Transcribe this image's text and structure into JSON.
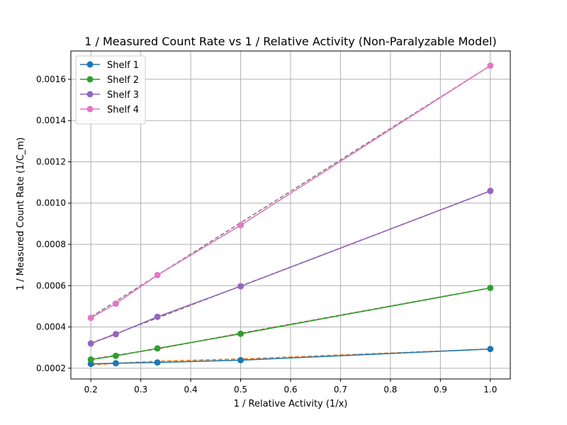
{
  "chart_data": {
    "type": "line",
    "title": "1 / Measured Count Rate vs 1 / Relative Activity (Non-Paralyzable Model)",
    "xlabel": "1 / Relative Activity (1/x)",
    "ylabel": "1 / Measured Count Rate (1/C_m)",
    "xlim": [
      0.16,
      1.04
    ],
    "ylim": [
      0.000148,
      0.001737
    ],
    "xticks": [
      0.2,
      0.3,
      0.4,
      0.5,
      0.6,
      0.7,
      0.8,
      0.9,
      1.0
    ],
    "xtick_labels": [
      "0.2",
      "0.3",
      "0.4",
      "0.5",
      "0.6",
      "0.7",
      "0.8",
      "0.9",
      "1.0"
    ],
    "yticks": [
      0.0002,
      0.0004,
      0.0006,
      0.0008,
      0.001,
      0.0012,
      0.0014,
      0.0016
    ],
    "ytick_labels": [
      "0.0002",
      "0.0004",
      "0.0006",
      "0.0008",
      "0.0010",
      "0.0012",
      "0.0014",
      "0.0016"
    ],
    "grid": true,
    "legend_position": "top-left",
    "series": [
      {
        "name": "Shelf 1",
        "color": "#1f77b4",
        "marker": true,
        "x": [
          0.2,
          0.25,
          0.3333,
          0.5,
          1.0
        ],
        "y": [
          0.000221,
          0.000224,
          0.000228,
          0.000239,
          0.000293
        ],
        "fit_color": "#ff7f0e",
        "fit_y": [
          0.000215,
          0.000224,
          0.000234,
          0.000245,
          0.000293
        ]
      },
      {
        "name": "Shelf 2",
        "color": "#2ca02c",
        "marker": true,
        "x": [
          0.2,
          0.25,
          0.3333,
          0.5,
          1.0
        ],
        "y": [
          0.000242,
          0.00026,
          0.000296,
          0.000367,
          0.000589
        ],
        "fit_color": "#d62728",
        "fit_y": [
          0.000243,
          0.000262,
          0.000294,
          0.000369,
          0.000589
        ]
      },
      {
        "name": "Shelf 3",
        "color": "#9467bd",
        "marker": true,
        "x": [
          0.2,
          0.25,
          0.3333,
          0.5,
          1.0
        ],
        "y": [
          0.00032,
          0.000365,
          0.000449,
          0.000597,
          0.001059
        ],
        "fit_color": "#8c564b",
        "fit_y": [
          0.000321,
          0.000367,
          0.000444,
          0.000598,
          0.001059
        ]
      },
      {
        "name": "Shelf 4",
        "color": "#e377c2",
        "marker": true,
        "x": [
          0.2,
          0.25,
          0.3333,
          0.5,
          1.0
        ],
        "y": [
          0.000444,
          0.000513,
          0.000651,
          0.000893,
          0.001666
        ],
        "fit_color": "#7f7f7f",
        "fit_y": [
          0.000448,
          0.000524,
          0.000651,
          0.000905,
          0.001666
        ]
      }
    ]
  }
}
